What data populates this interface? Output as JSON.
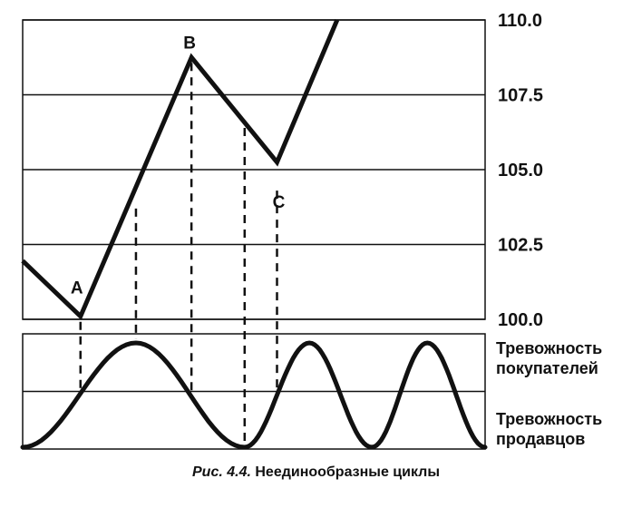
{
  "chart_data": [
    {
      "type": "line",
      "title": "",
      "xlabel": "",
      "ylabel": "",
      "ylim": [
        100.0,
        110.0
      ],
      "yticks": [
        "110.0",
        "107.5",
        "105.0",
        "102.5",
        "100.0"
      ],
      "ytick_values": [
        110.0,
        107.5,
        105.0,
        102.5,
        100.0
      ],
      "grid": "horizontal",
      "series": [
        {
          "values": [
            101.95,
            100.1,
            108.75,
            105.25,
            110.0
          ]
        }
      ],
      "x": [
        0,
        0.125,
        0.365,
        0.55,
        0.68
      ],
      "annotations": [
        {
          "label": "A",
          "x": 0.125,
          "y": 100.1
        },
        {
          "label": "B",
          "x": 0.365,
          "y": 108.75
        },
        {
          "label": "C",
          "x": 0.55,
          "y": 105.25
        }
      ],
      "dashed_guides_x": [
        0.125,
        0.245,
        0.365,
        0.48,
        0.55
      ]
    },
    {
      "type": "line",
      "title": "",
      "labels": [
        "Тревожность покупателей",
        "Тревожность продавцов"
      ],
      "wave": {
        "maxima_x": [
          0.245,
          0.62,
          0.875
        ],
        "minima_x": [
          0,
          0.48,
          0.755,
          1.0
        ],
        "midline": true
      }
    }
  ],
  "side_labels": {
    "buyers_line1": "Тревожность",
    "buyers_line2": "покупателей",
    "sellers_line1": "Тревожность",
    "sellers_line2": "продавцов"
  },
  "caption": {
    "number": "Рис. 4.4.",
    "text": " Неединообразные циклы"
  }
}
